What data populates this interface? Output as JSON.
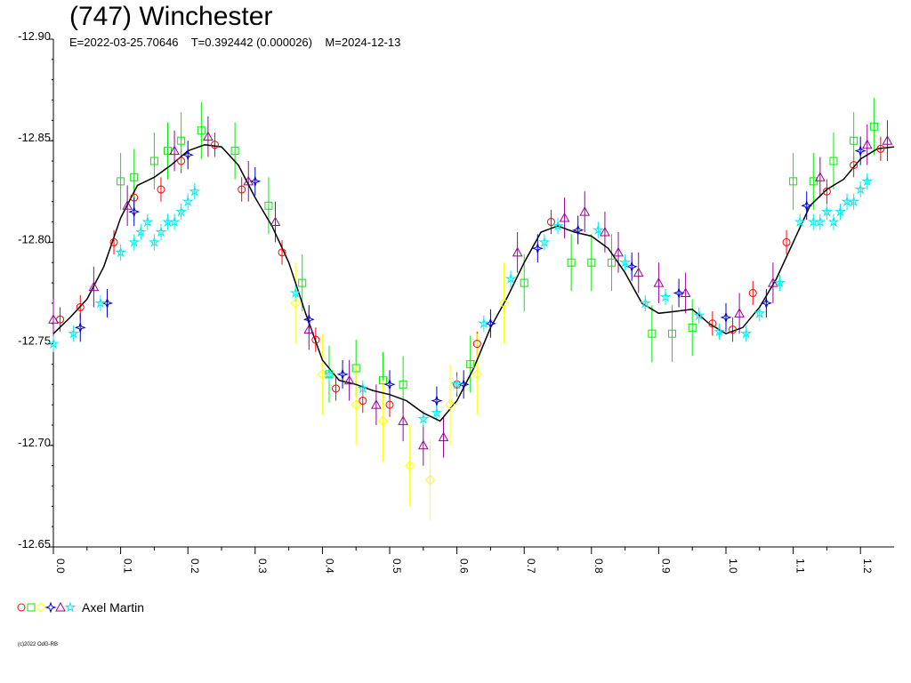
{
  "header": {
    "title": "(747) Winchester",
    "subtitle": "E=2022-03-25.70646    T=0.392442 (0.000026)    M=2024-12-13"
  },
  "legend": {
    "label": "Axel Martin",
    "symbols": [
      {
        "shape": "circle",
        "color": "#ff0000"
      },
      {
        "shape": "square",
        "color": "#00ee00"
      },
      {
        "shape": "diamond",
        "color": "#ffff00"
      },
      {
        "shape": "star4",
        "color": "#0000cc"
      },
      {
        "shape": "triangle",
        "color": "#990099"
      },
      {
        "shape": "star5",
        "color": "#00eeee"
      }
    ]
  },
  "footer": {
    "copyright": "(c)2022 OdG-RB"
  },
  "chart_data": {
    "type": "scatter",
    "title": "(747) Winchester",
    "xlabel": "",
    "ylabel": "",
    "xlim": [
      0.0,
      1.25
    ],
    "ylim": [
      -12.65,
      -12.9
    ],
    "y_inverted": true,
    "x_ticks": [
      "0.0",
      "0.1",
      "0.2",
      "0.3",
      "0.4",
      "0.5",
      "0.6",
      "0.7",
      "0.8",
      "0.9",
      "1.0",
      "1.1",
      "1.2"
    ],
    "y_ticks": [
      "-12.90",
      "-12.85",
      "-12.80",
      "-12.75",
      "-12.70",
      "-12.65"
    ],
    "grid": false,
    "legend_position": "bottom-left",
    "fit_curve": {
      "color": "#000000",
      "x": [
        0.0,
        0.025,
        0.05,
        0.075,
        0.1,
        0.125,
        0.15,
        0.175,
        0.2,
        0.225,
        0.25,
        0.275,
        0.3,
        0.325,
        0.35,
        0.375,
        0.4,
        0.425,
        0.45,
        0.475,
        0.5,
        0.525,
        0.55,
        0.575,
        0.6,
        0.625,
        0.65,
        0.675,
        0.7,
        0.725,
        0.75,
        0.775,
        0.8,
        0.825,
        0.85,
        0.875,
        0.9,
        0.925,
        0.95,
        0.975,
        1.0,
        1.025,
        1.05,
        1.075,
        1.1,
        1.125,
        1.15,
        1.175,
        1.2,
        1.225,
        1.25
      ],
      "y": [
        -12.755,
        -12.763,
        -12.772,
        -12.788,
        -12.812,
        -12.828,
        -12.832,
        -12.838,
        -12.845,
        -12.848,
        -12.847,
        -12.838,
        -12.822,
        -12.808,
        -12.79,
        -12.765,
        -12.742,
        -12.732,
        -12.73,
        -12.727,
        -12.725,
        -12.722,
        -12.716,
        -12.712,
        -12.722,
        -12.738,
        -12.758,
        -12.773,
        -12.79,
        -12.805,
        -12.808,
        -12.805,
        -12.803,
        -12.797,
        -12.785,
        -12.77,
        -12.765,
        -12.766,
        -12.767,
        -12.76,
        -12.755,
        -12.758,
        -12.768,
        -12.782,
        -12.8,
        -12.818,
        -12.826,
        -12.831,
        -12.841,
        -12.846,
        -12.847
      ]
    },
    "series": [
      {
        "marker": "circle",
        "color": "#ff0000",
        "x": [
          0.01,
          0.04,
          0.09,
          0.12,
          0.16,
          0.19,
          0.24,
          0.28,
          0.34,
          0.39,
          0.42,
          0.46,
          0.5,
          0.6,
          0.63,
          0.74,
          0.98,
          1.01,
          1.04,
          1.09,
          1.15,
          1.19,
          1.23
        ],
        "y": [
          -12.762,
          -12.768,
          -12.8,
          -12.822,
          -12.826,
          -12.84,
          -12.848,
          -12.826,
          -12.795,
          -12.752,
          -12.728,
          -12.722,
          -12.72,
          -12.73,
          -12.75,
          -12.81,
          -12.76,
          -12.757,
          -12.775,
          -12.8,
          -12.825,
          -12.838,
          -12.846
        ]
      },
      {
        "marker": "square",
        "color": "#00ee00",
        "x": [
          0.1,
          0.12,
          0.15,
          0.17,
          0.19,
          0.22,
          0.27,
          0.32,
          0.37,
          0.41,
          0.45,
          0.49,
          0.52,
          0.62,
          0.7,
          0.77,
          0.8,
          0.83,
          0.89,
          0.92,
          0.95,
          1.1,
          1.13,
          1.16,
          1.19,
          1.22
        ],
        "y": [
          -12.83,
          -12.832,
          -12.84,
          -12.845,
          -12.85,
          -12.855,
          -12.845,
          -12.818,
          -12.78,
          -12.735,
          -12.738,
          -12.732,
          -12.73,
          -12.74,
          -12.78,
          -12.79,
          -12.79,
          -12.79,
          -12.755,
          -12.755,
          -12.758,
          -12.83,
          -12.83,
          -12.84,
          -12.85,
          -12.857
        ]
      },
      {
        "marker": "diamond",
        "color": "#ffff00",
        "x": [
          0.36,
          0.4,
          0.45,
          0.49,
          0.53,
          0.56,
          0.59,
          0.63,
          0.67
        ],
        "y": [
          -12.77,
          -12.735,
          -12.72,
          -12.712,
          -12.69,
          -12.683,
          -12.72,
          -12.735,
          -12.77
        ]
      },
      {
        "marker": "star4",
        "color": "#0000cc",
        "x": [
          0.04,
          0.08,
          0.12,
          0.2,
          0.3,
          0.38,
          0.43,
          0.5,
          0.57,
          0.61,
          0.65,
          0.72,
          0.78,
          0.86,
          0.93,
          1.0,
          1.06,
          1.12,
          1.2
        ],
        "y": [
          -12.758,
          -12.77,
          -12.815,
          -12.843,
          -12.83,
          -12.762,
          -12.735,
          -12.73,
          -12.722,
          -12.73,
          -12.76,
          -12.797,
          -12.806,
          -12.788,
          -12.775,
          -12.763,
          -12.77,
          -12.818,
          -12.845
        ]
      },
      {
        "marker": "triangle",
        "color": "#990099",
        "x": [
          0.0,
          0.06,
          0.11,
          0.18,
          0.23,
          0.29,
          0.33,
          0.38,
          0.44,
          0.48,
          0.52,
          0.55,
          0.58,
          0.69,
          0.76,
          0.79,
          0.82,
          0.84,
          0.87,
          0.9,
          0.94,
          1.02,
          1.07,
          1.14,
          1.21,
          1.24
        ],
        "y": [
          -12.762,
          -12.778,
          -12.818,
          -12.845,
          -12.852,
          -12.83,
          -12.81,
          -12.757,
          -12.732,
          -12.72,
          -12.712,
          -12.7,
          -12.704,
          -12.795,
          -12.812,
          -12.815,
          -12.805,
          -12.795,
          -12.785,
          -12.78,
          -12.775,
          -12.765,
          -12.78,
          -12.832,
          -12.848,
          -12.85
        ]
      },
      {
        "marker": "star5",
        "color": "#00eeee",
        "x": [
          0.0,
          0.03,
          0.07,
          0.1,
          0.12,
          0.13,
          0.14,
          0.15,
          0.16,
          0.17,
          0.18,
          0.19,
          0.2,
          0.21,
          0.36,
          0.41,
          0.46,
          0.55,
          0.57,
          0.6,
          0.64,
          0.68,
          0.73,
          0.75,
          0.81,
          0.85,
          0.88,
          0.91,
          0.96,
          0.99,
          1.03,
          1.05,
          1.08,
          1.11,
          1.13,
          1.14,
          1.15,
          1.16,
          1.17,
          1.18,
          1.19,
          1.2,
          1.21
        ],
        "y": [
          -12.75,
          -12.755,
          -12.77,
          -12.795,
          -12.8,
          -12.805,
          -12.81,
          -12.8,
          -12.805,
          -12.81,
          -12.81,
          -12.815,
          -12.82,
          -12.825,
          -12.775,
          -12.735,
          -12.728,
          -12.713,
          -12.716,
          -12.73,
          -12.76,
          -12.782,
          -12.8,
          -12.808,
          -12.806,
          -12.79,
          -12.77,
          -12.773,
          -12.764,
          -12.756,
          -12.755,
          -12.765,
          -12.78,
          -12.81,
          -12.81,
          -12.81,
          -12.815,
          -12.81,
          -12.815,
          -12.82,
          -12.82,
          -12.826,
          -12.83
        ]
      }
    ]
  }
}
